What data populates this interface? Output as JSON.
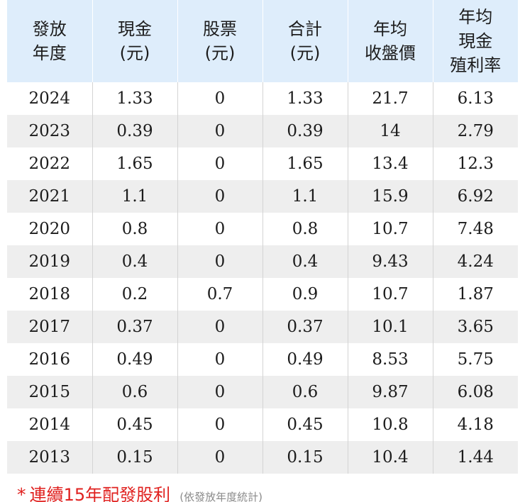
{
  "table": {
    "headers": [
      [
        "發放",
        "年度"
      ],
      [
        "現金",
        "(元)"
      ],
      [
        "股票",
        "(元)"
      ],
      [
        "合計",
        "(元)"
      ],
      [
        "年均",
        "收盤價"
      ],
      [
        "年均",
        "現金",
        "殖利率"
      ]
    ],
    "rows": [
      [
        "2024",
        "1.33",
        "0",
        "1.33",
        "21.7",
        "6.13"
      ],
      [
        "2023",
        "0.39",
        "0",
        "0.39",
        "14",
        "2.79"
      ],
      [
        "2022",
        "1.65",
        "0",
        "1.65",
        "13.4",
        "12.3"
      ],
      [
        "2021",
        "1.1",
        "0",
        "1.1",
        "15.9",
        "6.92"
      ],
      [
        "2020",
        "0.8",
        "0",
        "0.8",
        "10.7",
        "7.48"
      ],
      [
        "2019",
        "0.4",
        "0",
        "0.4",
        "9.43",
        "4.24"
      ],
      [
        "2018",
        "0.2",
        "0.7",
        "0.9",
        "10.7",
        "1.87"
      ],
      [
        "2017",
        "0.37",
        "0",
        "0.37",
        "10.1",
        "3.65"
      ],
      [
        "2016",
        "0.49",
        "0",
        "0.49",
        "8.53",
        "5.75"
      ],
      [
        "2015",
        "0.6",
        "0",
        "0.6",
        "9.87",
        "6.08"
      ],
      [
        "2014",
        "0.45",
        "0",
        "0.45",
        "10.8",
        "4.18"
      ],
      [
        "2013",
        "0.15",
        "0",
        "0.15",
        "10.4",
        "1.44"
      ]
    ]
  },
  "footnote": {
    "star": "*",
    "text": "連續15年配發股利",
    "sub": "(依發放年度統計)"
  },
  "colors": {
    "header_bg": "#deedfb",
    "alt_row_bg": "#eeeeee",
    "footnote_red": "#e0211f",
    "footnote_gray": "#8a8a8a"
  }
}
